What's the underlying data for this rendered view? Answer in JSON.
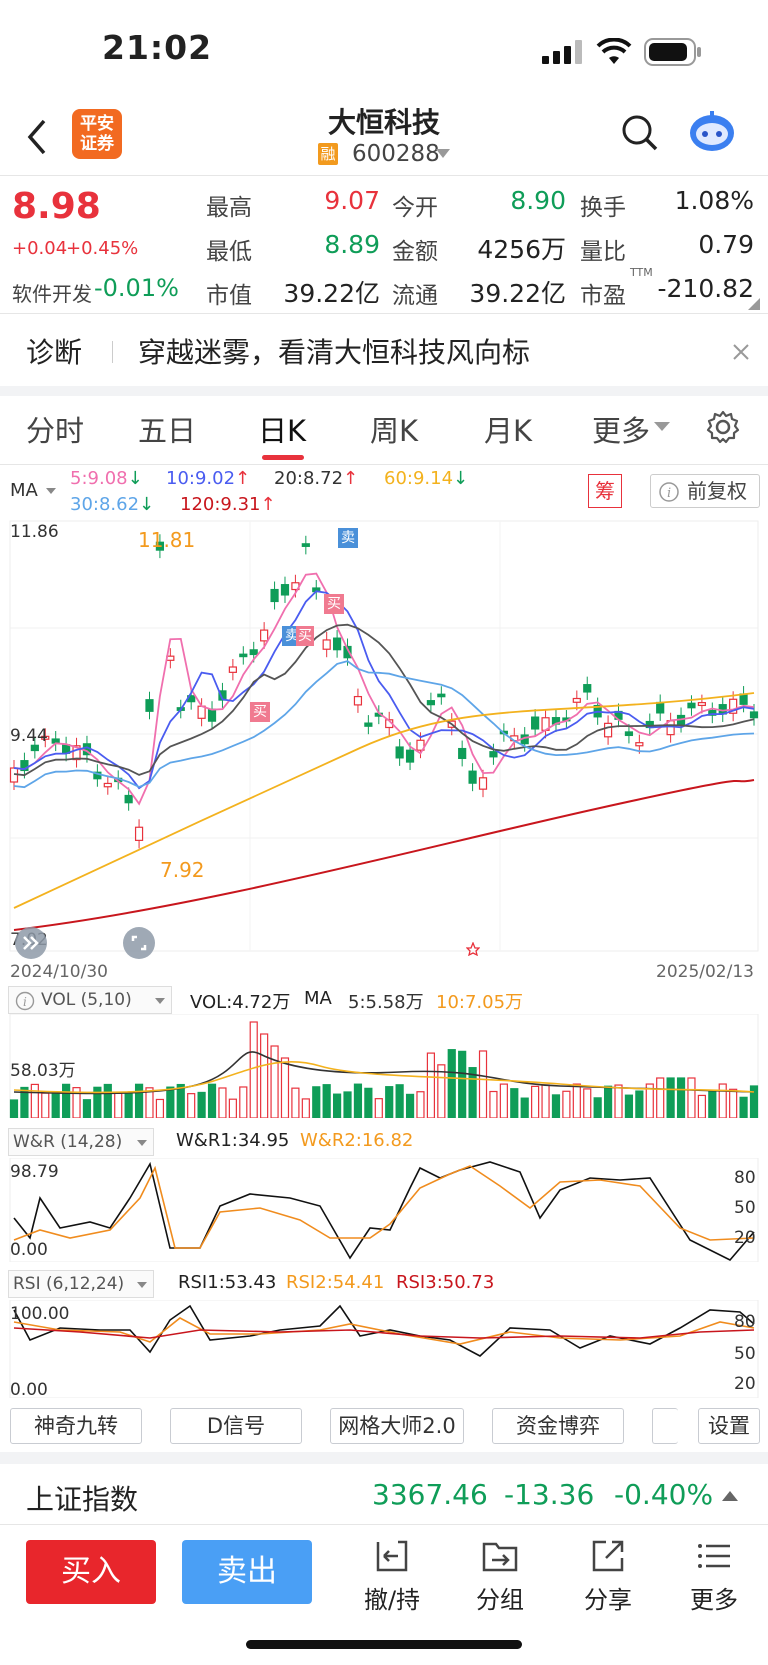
{
  "status": {
    "time": "21:02"
  },
  "header": {
    "broker_logo": "平安证券",
    "stock_name": "大恒科技",
    "margin_badge": "融",
    "code": "600288"
  },
  "quote": {
    "price": "8.98",
    "change": "+0.04",
    "change_pct": "+0.45%",
    "industry": "软件开发",
    "industry_pct": "-0.01%",
    "fields": [
      {
        "label": "最高",
        "value": "9.07",
        "color": "red"
      },
      {
        "label": "今开",
        "value": "8.90",
        "color": "green"
      },
      {
        "label": "换手",
        "value": "1.08%",
        "color": "black"
      },
      {
        "label": "最低",
        "value": "8.89",
        "color": "green"
      },
      {
        "label": "金额",
        "value": "4256万",
        "color": "black"
      },
      {
        "label": "量比",
        "value": "0.79",
        "color": "black"
      },
      {
        "label": "市值",
        "value": "39.22亿",
        "color": "black"
      },
      {
        "label": "流通",
        "value": "39.22亿",
        "color": "black"
      },
      {
        "label": "市盈",
        "value": "-210.82",
        "color": "black"
      }
    ],
    "pe_sup": "TTM"
  },
  "diagnosis": {
    "label": "诊断",
    "text": "穿越迷雾，看清大恒科技风向标"
  },
  "tabs": [
    "分时",
    "五日",
    "日K",
    "周K",
    "月K",
    "更多"
  ],
  "ma": {
    "label": "MA",
    "items": [
      {
        "text": "5:9.08",
        "arrow": "↓",
        "color": "#f06fae"
      },
      {
        "text": "10:9.02",
        "arrow": "↑",
        "color": "#4a5cf0"
      },
      {
        "text": "20:8.72",
        "arrow": "↑",
        "color": "#333333"
      },
      {
        "text": "60:9.14",
        "arrow": "↓",
        "color": "#f3b21e"
      },
      {
        "text": "30:8.62",
        "arrow": "↓",
        "color": "#5ea5e8"
      },
      {
        "text": "120:9.31",
        "arrow": "↑",
        "color": "#c8161d"
      }
    ],
    "chip_badge": "筹",
    "adjust": "前复权"
  },
  "kline": {
    "y_top": "11.86",
    "y_mid": "9.44",
    "y_bottom": "7.02",
    "high_label": "11.81",
    "low_label": "7.92",
    "date_start": "2024/10/30",
    "date_end": "2025/02/13",
    "buy_label": "买",
    "sell_label": "卖"
  },
  "volume": {
    "label": "VOL (5,10)",
    "vol": "VOL:4.72万",
    "ma_label": "MA",
    "ma5": "5:5.58万",
    "ma10": "10:7.05万",
    "y_label": "58.03万"
  },
  "wr": {
    "label": "W&R (14,28)",
    "wr1": "W&R1:34.95",
    "wr2": "W&R2:16.82",
    "y_top": "98.79",
    "y_bottom": "0.00",
    "ticks": [
      "80",
      "50",
      "20"
    ]
  },
  "rsi": {
    "label": "RSI (6,12,24)",
    "rsi1": "RSI1:53.43",
    "rsi2": "RSI2:54.41",
    "rsi3": "RSI3:50.73",
    "y_top": "100.00",
    "y_bottom": "0.00",
    "ticks": [
      "80",
      "50",
      "20"
    ]
  },
  "tools": [
    "神奇九转",
    "D信号",
    "网格大师2.0",
    "资金博弈",
    "设置"
  ],
  "index": {
    "name": "上证指数",
    "value": "3367.46",
    "change": "-13.36",
    "pct": "-0.40%"
  },
  "bottom": {
    "buy": "买入",
    "sell": "卖出",
    "nav": [
      "撤/持",
      "分组",
      "分享",
      "更多"
    ]
  }
}
